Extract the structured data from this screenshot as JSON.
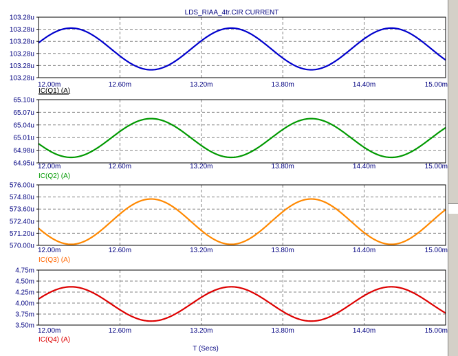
{
  "title": "LDS_RIAA_4tr.CIR CURRENT",
  "x_axis_title": "T (Secs)",
  "colors": {
    "frame": "#000000",
    "grid": "#808080",
    "tick_text": "#000080",
    "title_text": "#000080",
    "panel_bg": "#ffffff"
  },
  "chart_data": [
    {
      "type": "line",
      "series": [
        {
          "name": "IC(Q1) (A)",
          "color": "#0000cc"
        }
      ],
      "legend_label": "IC(Q1) (A)",
      "legend_color": "#000000",
      "legend_underline": true,
      "xlim": [
        0.012,
        0.015
      ],
      "x_ticks": [
        "12.00m",
        "12.60m",
        "13.20m",
        "13.80m",
        "14.40m",
        "15.00m"
      ],
      "y_ticks": [
        "103.28u",
        "103.28u",
        "103.28u",
        "103.28u",
        "103.28u",
        "103.28u"
      ],
      "wave": {
        "period": 0.00118,
        "peak_at": 0.01224,
        "min_frac": 0.13,
        "max_frac": 0.82
      }
    },
    {
      "type": "line",
      "series": [
        {
          "name": "IC(Q2) (A)",
          "color": "#009900"
        }
      ],
      "legend_label": "IC(Q2) (A)",
      "legend_color": "#009900",
      "legend_underline": false,
      "ylim": [
        64.95,
        65.1
      ],
      "xlim": [
        0.012,
        0.015
      ],
      "x_ticks": [
        "12.00m",
        "12.60m",
        "13.20m",
        "13.80m",
        "14.40m",
        "15.00m"
      ],
      "y_ticks": [
        "65.10u",
        "65.07u",
        "65.04u",
        "65.01u",
        "64.98u",
        "64.95u"
      ],
      "wave": {
        "period": 0.00118,
        "peak_at": 0.01283,
        "min": 64.963,
        "max": 65.055
      }
    },
    {
      "type": "line",
      "series": [
        {
          "name": "IC(Q3) (A)",
          "color": "#ff8800"
        }
      ],
      "legend_label": "IC(Q3) (A)",
      "legend_color": "#ff6600",
      "legend_underline": false,
      "ylim": [
        570.0,
        576.0
      ],
      "xlim": [
        0.012,
        0.015
      ],
      "x_ticks": [
        "12.00m",
        "12.60m",
        "13.20m",
        "13.80m",
        "14.40m",
        "15.00m"
      ],
      "y_ticks": [
        "576.00u",
        "574.80u",
        "573.60u",
        "572.40u",
        "571.20u",
        "570.00u"
      ],
      "wave": {
        "period": 0.00118,
        "peak_at": 0.01283,
        "min": 570.1,
        "max": 574.6
      }
    },
    {
      "type": "line",
      "series": [
        {
          "name": "IC(Q4) (A)",
          "color": "#dd0000"
        }
      ],
      "legend_label": "IC(Q4) (A)",
      "legend_color": "#dd0000",
      "legend_underline": false,
      "ylim": [
        3.5,
        4.75
      ],
      "xlim": [
        0.012,
        0.015
      ],
      "x_ticks": [
        "12.00m",
        "12.60m",
        "13.20m",
        "13.80m",
        "14.40m",
        "15.00m"
      ],
      "y_ticks": [
        "4.75m",
        "4.50m",
        "4.25m",
        "4.00m",
        "3.75m",
        "3.50m"
      ],
      "wave": {
        "period": 0.00118,
        "peak_at": 0.01224,
        "min": 3.59,
        "max": 4.37
      }
    }
  ]
}
